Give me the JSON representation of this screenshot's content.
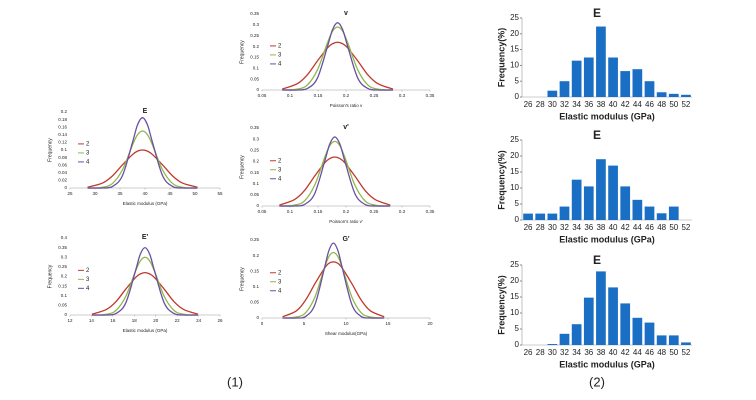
{
  "chart_data": [
    {
      "type": "line",
      "title": "E",
      "x_label": "Elastic modulus (GPa)",
      "y_label": "Frequency",
      "x": [
        28.5,
        31.5,
        33.5,
        35.5,
        37.5,
        38.5,
        39.5,
        40.5,
        41.5,
        43.5,
        45.5,
        47.5,
        50.5
      ],
      "series": [
        {
          "name": "2",
          "color": "#c0392b",
          "values": [
            0.002,
            0.013,
            0.032,
            0.061,
            0.088,
            0.097,
            0.1,
            0.097,
            0.088,
            0.061,
            0.032,
            0.013,
            0.002
          ]
        },
        {
          "name": "3",
          "color": "#8fb84a",
          "values": [
            0,
            0.002,
            0.012,
            0.048,
            0.113,
            0.14,
            0.15,
            0.14,
            0.113,
            0.048,
            0.012,
            0.002,
            0
          ]
        },
        {
          "name": "4",
          "color": "#6a4fa3",
          "values": [
            0,
            0,
            0.004,
            0.033,
            0.12,
            0.166,
            0.185,
            0.166,
            0.12,
            0.033,
            0.004,
            0,
            0
          ]
        }
      ],
      "xlim": [
        25,
        55
      ],
      "xticks": [
        25,
        30,
        35,
        40,
        45,
        50,
        55
      ],
      "ylim": [
        0,
        0.2
      ],
      "yticks": [
        0,
        0.02,
        0.04,
        0.06,
        0.08,
        0.1,
        0.12,
        0.14,
        0.16,
        0.18,
        0.2
      ]
    },
    {
      "type": "line",
      "title": "E'",
      "x_label": "Elastic modulus (GPa)",
      "y_label": "Frequency",
      "x": [
        14.05,
        15.4,
        16.3,
        17.2,
        18.1,
        18.55,
        19,
        19.45,
        19.9,
        20.8,
        21.7,
        22.6,
        23.95
      ],
      "series": [
        {
          "name": "2",
          "color": "#c0392b",
          "values": [
            0.004,
            0.029,
            0.07,
            0.134,
            0.194,
            0.213,
            0.22,
            0.213,
            0.194,
            0.134,
            0.07,
            0.029,
            0.004
          ]
        },
        {
          "name": "3",
          "color": "#8fb84a",
          "values": [
            0,
            0.004,
            0.024,
            0.096,
            0.226,
            0.28,
            0.3,
            0.28,
            0.226,
            0.096,
            0.024,
            0.004,
            0
          ]
        },
        {
          "name": "4",
          "color": "#6a4fa3",
          "values": [
            0,
            0,
            0.008,
            0.062,
            0.227,
            0.314,
            0.35,
            0.314,
            0.227,
            0.062,
            0.008,
            0,
            0
          ]
        }
      ],
      "xlim": [
        12,
        26
      ],
      "xticks": [
        12,
        14,
        16,
        18,
        20,
        22,
        24,
        26
      ],
      "ylim": [
        0,
        0.4
      ],
      "yticks": [
        0,
        0.05,
        0.1,
        0.15,
        0.2,
        0.25,
        0.3,
        0.35,
        0.4
      ]
    },
    {
      "type": "line",
      "title": "v",
      "x_label": "Poisson's ratio v",
      "y_label": "Frequency",
      "x": [
        0.086,
        0.113,
        0.131,
        0.149,
        0.167,
        0.176,
        0.185,
        0.194,
        0.203,
        0.221,
        0.239,
        0.257,
        0.284
      ],
      "series": [
        {
          "name": "2",
          "color": "#c0392b",
          "values": [
            0.004,
            0.029,
            0.07,
            0.134,
            0.194,
            0.213,
            0.22,
            0.213,
            0.194,
            0.134,
            0.07,
            0.029,
            0.004
          ]
        },
        {
          "name": "3",
          "color": "#8fb84a",
          "values": [
            0,
            0.004,
            0.023,
            0.093,
            0.218,
            0.271,
            0.29,
            0.271,
            0.218,
            0.093,
            0.023,
            0.004,
            0
          ]
        },
        {
          "name": "4",
          "color": "#6a4fa3",
          "values": [
            0,
            0,
            0.007,
            0.055,
            0.201,
            0.278,
            0.31,
            0.278,
            0.201,
            0.055,
            0.007,
            0,
            0
          ]
        }
      ],
      "xlim": [
        0.05,
        0.35
      ],
      "xticks": [
        0.05,
        0.1,
        0.15,
        0.2,
        0.25,
        0.3,
        0.35
      ],
      "ylim": [
        0,
        0.35
      ],
      "yticks": [
        0,
        0.05,
        0.1,
        0.15,
        0.2,
        0.25,
        0.3,
        0.35
      ]
    },
    {
      "type": "line",
      "title": "v'",
      "x_label": "Poisson's ratio v'",
      "y_label": "Frequency",
      "x": [
        0.081,
        0.108,
        0.126,
        0.144,
        0.162,
        0.171,
        0.18,
        0.189,
        0.198,
        0.216,
        0.234,
        0.252,
        0.279
      ],
      "series": [
        {
          "name": "2",
          "color": "#c0392b",
          "values": [
            0.004,
            0.029,
            0.07,
            0.134,
            0.194,
            0.213,
            0.22,
            0.213,
            0.194,
            0.134,
            0.07,
            0.029,
            0.004
          ]
        },
        {
          "name": "3",
          "color": "#8fb84a",
          "values": [
            0,
            0.004,
            0.023,
            0.093,
            0.218,
            0.271,
            0.29,
            0.271,
            0.218,
            0.093,
            0.023,
            0.004,
            0
          ]
        },
        {
          "name": "4",
          "color": "#6a4fa3",
          "values": [
            0,
            0,
            0.007,
            0.055,
            0.201,
            0.278,
            0.31,
            0.278,
            0.201,
            0.055,
            0.007,
            0,
            0
          ]
        }
      ],
      "xlim": [
        0.05,
        0.35
      ],
      "xticks": [
        0.05,
        0.1,
        0.15,
        0.2,
        0.25,
        0.3,
        0.35
      ],
      "ylim": [
        0,
        0.35
      ],
      "yticks": [
        0,
        0.05,
        0.1,
        0.15,
        0.2,
        0.25,
        0.3,
        0.35
      ]
    },
    {
      "type": "line",
      "title": "G'",
      "x_label": "Shear modulus(GPa)",
      "y_label": "Frequency",
      "x": [
        2.45,
        4.1,
        5.2,
        6.3,
        7.4,
        7.95,
        8.5,
        9.05,
        9.6,
        10.7,
        11.8,
        12.9,
        14.55
      ],
      "series": [
        {
          "name": "2",
          "color": "#c0392b",
          "values": [
            0.004,
            0.023,
            0.058,
            0.11,
            0.158,
            0.175,
            0.18,
            0.175,
            0.158,
            0.11,
            0.058,
            0.023,
            0.004
          ]
        },
        {
          "name": "3",
          "color": "#8fb84a",
          "values": [
            0,
            0.003,
            0.017,
            0.067,
            0.158,
            0.196,
            0.21,
            0.196,
            0.158,
            0.067,
            0.017,
            0.003,
            0
          ]
        },
        {
          "name": "4",
          "color": "#6a4fa3",
          "values": [
            0,
            0,
            0.005,
            0.043,
            0.156,
            0.215,
            0.24,
            0.215,
            0.156,
            0.043,
            0.005,
            0,
            0
          ]
        }
      ],
      "xlim": [
        0,
        20
      ],
      "xticks": [
        0,
        5,
        10,
        15,
        20
      ],
      "ylim": [
        0,
        0.25
      ],
      "yticks": [
        0,
        0.05,
        0.1,
        0.15,
        0.2,
        0.25
      ]
    },
    {
      "type": "bar",
      "title": "E",
      "x_label": "Elastic modulus (GPa)",
      "y_label": "Frequency(%)",
      "color": "#1a6fc4",
      "categories": [
        "26",
        "28",
        "30",
        "32",
        "34",
        "36",
        "38",
        "40",
        "42",
        "44",
        "46",
        "48",
        "50",
        "52"
      ],
      "values": [
        0,
        0,
        2,
        5,
        11.5,
        12.5,
        22.3,
        12.5,
        8.2,
        8.8,
        5,
        1.5,
        1,
        0.7
      ],
      "ylim": [
        0,
        25
      ],
      "yticks": [
        0,
        5,
        10,
        15,
        20,
        25
      ]
    },
    {
      "type": "bar",
      "title": "E",
      "x_label": "Elastic modulus (GPa)",
      "y_label": "Frequency(%)",
      "color": "#1a6fc4",
      "categories": [
        "26",
        "28",
        "30",
        "32",
        "34",
        "36",
        "38",
        "40",
        "42",
        "44",
        "46",
        "48",
        "50",
        "52"
      ],
      "values": [
        2,
        2,
        2,
        4.2,
        12.6,
        10.5,
        19,
        17,
        10.5,
        6.3,
        4.2,
        2.1,
        4.2,
        0
      ],
      "ylim": [
        0,
        25
      ],
      "yticks": [
        0,
        5,
        10,
        15,
        20,
        25
      ]
    },
    {
      "type": "bar",
      "title": "E",
      "x_label": "Elastic modulus (GPa)",
      "y_label": "Frequency(%)",
      "color": "#1a6fc4",
      "categories": [
        "26",
        "28",
        "30",
        "32",
        "34",
        "36",
        "38",
        "40",
        "42",
        "44",
        "46",
        "48",
        "50",
        "52"
      ],
      "values": [
        0,
        0,
        0.3,
        3.5,
        6.5,
        14.8,
        23,
        18,
        13,
        8.5,
        7,
        3,
        3,
        0.8
      ],
      "ylim": [
        0,
        25
      ],
      "yticks": [
        0,
        5,
        10,
        15,
        20,
        25
      ]
    }
  ],
  "panel_labels": [
    "(1)",
    "(2)"
  ]
}
